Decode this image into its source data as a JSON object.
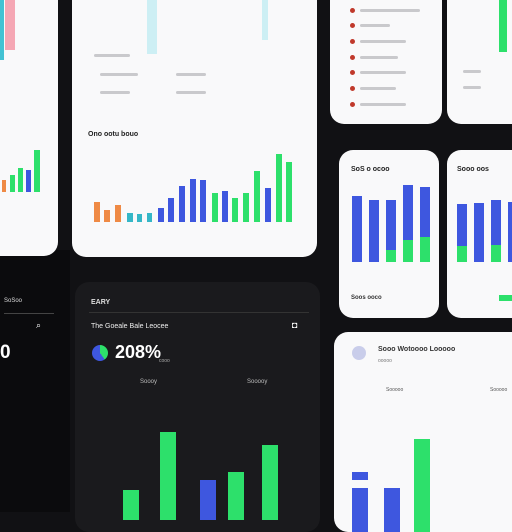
{
  "card_center_top": {
    "title": "Ono ootu bouo"
  },
  "card_right_a": {
    "title": "SoS o ocoo"
  },
  "card_right_b": {
    "title": "Sooo oos"
  },
  "card_right_a_footer": {
    "label": "Soos ooco"
  },
  "dark_panel": {
    "label": "EARY",
    "title": "The Goeale Bale Leocee",
    "kpi_value": "208%",
    "kpi_suffix": "cooo",
    "legend_left": "Soooy",
    "legend_right": "Sooooy"
  },
  "bottom_right": {
    "title": "Sooo Wotoooo Looooo",
    "subtitle": "ooooo",
    "legend_left": "Sooooo",
    "legend_right": "Sooooo"
  },
  "dark_left_label": "SoSoo",
  "dark_left_value": "0",
  "colors": {
    "blue": "#3e57df",
    "green": "#2de06b",
    "orange": "#ef8a45",
    "teal": "#35b7c7",
    "pink": "#f2a5b3"
  }
}
